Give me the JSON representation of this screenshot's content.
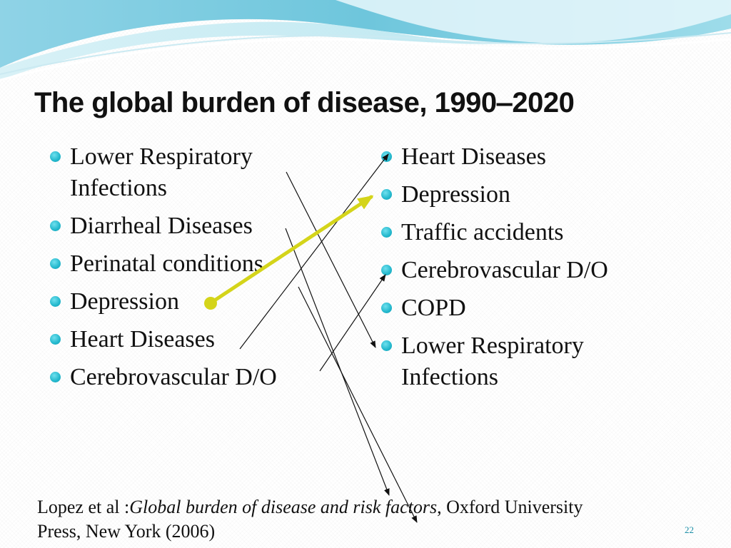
{
  "slide": {
    "title": "The global burden of disease, 1990‒2020",
    "left_list": [
      "Lower Respiratory Infections",
      "Diarrheal Diseases",
      "Perinatal conditions",
      "Depression",
      "Heart Diseases",
      "Cerebrovascular D/O"
    ],
    "right_list": [
      "Heart Diseases",
      "Depression",
      "Traffic accidents",
      "Cerebrovascular D/O",
      "COPD",
      "Lower Respiratory Infections"
    ],
    "citation": {
      "prefix": "Lopez et al :",
      "title": "Global burden of disease and risk factors",
      "suffix": ", Oxford University Press, New York (2006)"
    },
    "page_number": "22"
  },
  "colors": {
    "accent": "#d4d41a",
    "bullet": "#22b7cc",
    "line": "#111111",
    "page_number": "#1a8ea6"
  }
}
